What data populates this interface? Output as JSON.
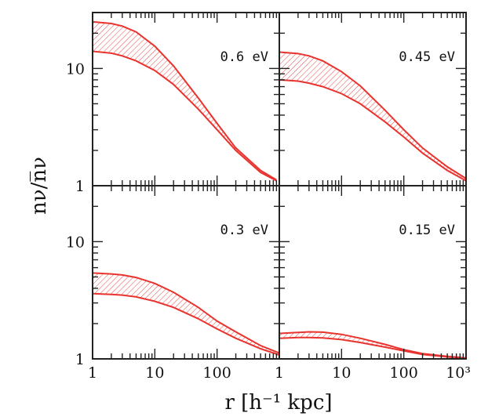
{
  "chart_data": {
    "type": "area",
    "layout": "2x2",
    "x_scale": "log",
    "y_scale": "log",
    "xlim": [
      1,
      1000
    ],
    "ylim": [
      1,
      30
    ],
    "xlabel": "r  [h⁻¹ kpc]",
    "ylabel": "nν/n̅ν",
    "x_ticks": [
      1,
      10,
      100,
      "10³"
    ],
    "y_ticks": [
      1,
      10
    ],
    "series_color": "#e8332e",
    "fill": "hatched",
    "panels": [
      {
        "label": "0.6 eV",
        "x": [
          1,
          2,
          3,
          5,
          10,
          20,
          50,
          100,
          200,
          500,
          900
        ],
        "upper": [
          25,
          24.2,
          23,
          20.5,
          15.5,
          10.5,
          5.6,
          3.4,
          2.1,
          1.35,
          1.12
        ],
        "lower": [
          14,
          13.5,
          12.8,
          11.6,
          9.6,
          7.3,
          4.5,
          3.0,
          2.0,
          1.3,
          1.1
        ]
      },
      {
        "label": "0.45 eV",
        "x": [
          1,
          2,
          3,
          5,
          10,
          20,
          50,
          100,
          200,
          500,
          1000
        ],
        "upper": [
          13.8,
          13.4,
          12.8,
          11.6,
          9.4,
          7.1,
          4.4,
          3.0,
          2.1,
          1.45,
          1.15
        ],
        "lower": [
          8.0,
          7.8,
          7.5,
          7.0,
          6.1,
          5.0,
          3.5,
          2.6,
          1.9,
          1.35,
          1.1
        ]
      },
      {
        "label": "0.3 eV",
        "x": [
          1,
          2,
          3,
          5,
          10,
          20,
          50,
          100,
          200,
          500,
          1000
        ],
        "upper": [
          5.4,
          5.3,
          5.2,
          4.95,
          4.4,
          3.7,
          2.75,
          2.1,
          1.7,
          1.3,
          1.12
        ],
        "lower": [
          3.6,
          3.55,
          3.5,
          3.38,
          3.1,
          2.75,
          2.2,
          1.8,
          1.5,
          1.22,
          1.08
        ]
      },
      {
        "label": "0.15 eV",
        "x": [
          1,
          2,
          3,
          5,
          10,
          20,
          50,
          100,
          200,
          500,
          1000
        ],
        "upper": [
          1.65,
          1.68,
          1.7,
          1.69,
          1.62,
          1.5,
          1.33,
          1.2,
          1.11,
          1.05,
          1.02
        ],
        "lower": [
          1.5,
          1.52,
          1.52,
          1.51,
          1.46,
          1.38,
          1.26,
          1.17,
          1.09,
          1.04,
          1.01
        ]
      }
    ]
  }
}
